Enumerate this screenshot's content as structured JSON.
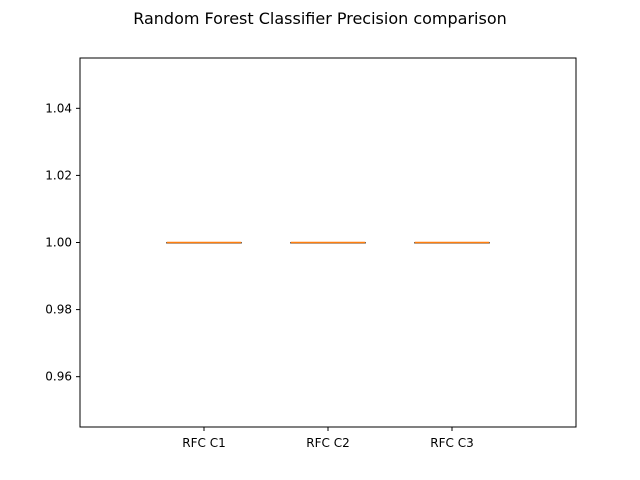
{
  "chart_data": {
    "type": "box",
    "title": "Random Forest Classifier Precision comparison",
    "xlabel": "",
    "ylabel": "",
    "categories": [
      "RFC C1",
      "RFC C2",
      "RFC C3"
    ],
    "boxes": [
      {
        "category": "RFC C1",
        "whisker_low": 1.0,
        "q1": 1.0,
        "median": 1.0,
        "q3": 1.0,
        "whisker_high": 1.0
      },
      {
        "category": "RFC C2",
        "whisker_low": 1.0,
        "q1": 1.0,
        "median": 1.0,
        "q3": 1.0,
        "whisker_high": 1.0
      },
      {
        "category": "RFC C3",
        "whisker_low": 1.0,
        "q1": 1.0,
        "median": 1.0,
        "q3": 1.0,
        "whisker_high": 1.0
      }
    ],
    "ylim": [
      0.945,
      1.055
    ],
    "yticks": [
      0.96,
      0.98,
      1.0,
      1.02,
      1.04
    ],
    "ytick_labels": [
      "0.96",
      "0.98",
      "1.00",
      "1.02",
      "1.04"
    ],
    "grid": false,
    "colors": {
      "median": "#ff7f0e",
      "box": "#000000",
      "axes": "#000000"
    }
  }
}
